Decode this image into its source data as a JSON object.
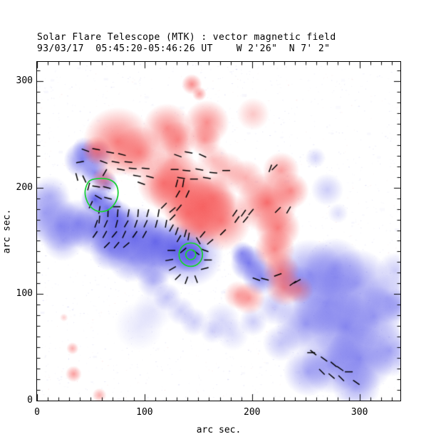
{
  "header": {
    "title": "Solar Flare Telescope (MTK) : vector magnetic field",
    "subtitle": "93/03/17  05:45:20-05:46:26 UT    W 2'26\"  N 7' 2\""
  },
  "chart_data": {
    "type": "heatmap",
    "title": "Solar Flare Telescope (MTK) : vector magnetic field",
    "subtitle": "93/03/17  05:45:20-05:46:26 UT    W 2'26\"  N 7' 2\"",
    "xlabel": "arc sec.",
    "ylabel": "arc sec.",
    "xlim": [
      0,
      338
    ],
    "ylim": [
      0,
      318
    ],
    "x_ticks": [
      0,
      100,
      200,
      300
    ],
    "y_ticks": [
      0,
      100,
      200,
      300
    ],
    "minor_tick_step": 10,
    "grid": false,
    "legend": "none",
    "colors": {
      "positive_polarity": "#f65c5c",
      "negative_polarity": "#5858e8",
      "contour": "#1fd03a",
      "vector": "#000000",
      "frame": "#000000",
      "background": "#ffffff"
    },
    "regions_positive": [
      [
        144,
        297,
        5,
        0.7
      ],
      [
        151,
        288,
        3.5,
        0.6
      ],
      [
        75,
        243,
        17,
        0.8
      ],
      [
        95,
        233,
        13,
        0.75
      ],
      [
        55,
        235,
        7,
        0.7
      ],
      [
        121,
        256,
        12,
        0.7
      ],
      [
        131,
        245,
        9,
        0.7
      ],
      [
        158,
        261,
        11,
        0.7
      ],
      [
        156,
        245,
        8,
        0.6
      ],
      [
        164,
        226,
        8,
        0.4
      ],
      [
        127,
        226,
        10,
        0.5
      ],
      [
        118,
        204,
        13,
        0.8
      ],
      [
        134,
        199,
        16,
        0.95
      ],
      [
        154,
        182,
        16,
        0.85
      ],
      [
        171,
        169,
        15,
        0.8
      ],
      [
        141,
        176,
        12,
        0.8
      ],
      [
        152,
        164,
        10,
        0.6
      ],
      [
        163,
        190,
        12,
        0.75
      ],
      [
        62,
        208,
        6,
        0.6
      ],
      [
        177,
        216,
        9,
        0.45
      ],
      [
        194,
        209,
        9,
        0.5
      ],
      [
        201,
        269,
        8,
        0.35
      ],
      [
        214,
        186,
        15,
        0.9
      ],
      [
        227,
        216,
        9,
        0.6
      ],
      [
        236,
        197,
        9,
        0.7
      ],
      [
        224,
        162,
        11,
        0.8
      ],
      [
        221,
        142,
        10,
        0.75
      ],
      [
        227,
        122,
        9,
        0.75
      ],
      [
        230,
        106,
        9,
        0.7
      ],
      [
        244,
        104,
        7,
        0.5
      ],
      [
        197,
        96,
        8,
        0.6
      ],
      [
        187,
        99,
        7,
        0.5
      ],
      [
        33,
        49,
        3,
        0.5
      ],
      [
        34,
        25,
        4,
        0.6
      ],
      [
        58,
        5,
        3.5,
        0.5
      ],
      [
        25,
        78,
        2,
        0.3
      ]
    ],
    "regions_negative": [
      [
        42,
        226,
        9,
        0.75
      ],
      [
        44,
        236,
        6,
        0.5
      ],
      [
        54,
        214,
        7,
        0.7
      ],
      [
        57,
        231,
        7,
        0.6
      ],
      [
        64,
        204,
        6,
        0.7
      ],
      [
        54,
        189,
        7,
        0.95
      ],
      [
        65,
        181,
        8,
        0.8
      ],
      [
        74,
        171,
        9,
        0.8
      ],
      [
        7,
        176,
        15,
        0.5
      ],
      [
        22,
        164,
        13,
        0.55
      ],
      [
        12,
        192,
        10,
        0.35
      ],
      [
        24,
        150,
        10,
        0.4
      ],
      [
        38,
        166,
        12,
        0.6
      ],
      [
        55,
        161,
        13,
        0.7
      ],
      [
        73,
        156,
        13,
        0.75
      ],
      [
        91,
        154,
        15,
        0.8
      ],
      [
        110,
        149,
        13,
        0.85
      ],
      [
        128,
        142,
        13,
        0.9
      ],
      [
        143,
        137,
        9,
        1.0
      ],
      [
        143,
        137,
        16,
        0.6
      ],
      [
        88,
        134,
        12,
        0.6
      ],
      [
        108,
        128,
        11,
        0.55
      ],
      [
        68,
        141,
        10,
        0.6
      ],
      [
        108,
        112,
        8,
        0.4
      ],
      [
        121,
        97,
        7,
        0.35
      ],
      [
        134,
        84,
        7,
        0.3
      ],
      [
        146,
        74,
        7,
        0.3
      ],
      [
        163,
        65,
        6,
        0.25
      ],
      [
        172,
        75,
        9,
        0.25
      ],
      [
        182,
        62,
        8,
        0.2
      ],
      [
        95,
        70,
        12,
        0.15
      ],
      [
        108,
        85,
        10,
        0.15
      ],
      [
        197,
        129,
        9,
        0.8
      ],
      [
        208,
        116,
        9,
        0.75
      ],
      [
        191,
        138,
        6,
        0.6
      ],
      [
        230,
        115,
        10,
        0.4
      ],
      [
        270,
        198,
        8,
        0.3
      ],
      [
        259,
        228,
        5,
        0.25
      ],
      [
        280,
        176,
        5,
        0.2
      ],
      [
        254,
        119,
        17,
        0.6
      ],
      [
        277,
        124,
        15,
        0.55
      ],
      [
        297,
        110,
        17,
        0.6
      ],
      [
        270,
        92,
        17,
        0.65
      ],
      [
        250,
        72,
        15,
        0.6
      ],
      [
        287,
        69,
        17,
        0.7
      ],
      [
        313,
        79,
        15,
        0.6
      ],
      [
        326,
        96,
        12,
        0.45
      ],
      [
        300,
        39,
        17,
        0.7
      ],
      [
        274,
        35,
        15,
        0.6
      ],
      [
        252,
        27,
        12,
        0.5
      ],
      [
        297,
        14,
        12,
        0.5
      ],
      [
        328,
        47,
        13,
        0.55
      ],
      [
        221,
        88,
        9,
        0.35
      ],
      [
        201,
        74,
        7,
        0.3
      ],
      [
        227,
        54,
        9,
        0.35
      ],
      [
        244,
        110,
        9,
        0.45
      ],
      [
        333,
        122,
        9,
        0.3
      ],
      [
        336,
        89,
        8,
        0.35
      ]
    ],
    "vectors": [
      [
        68,
        233,
        -10
      ],
      [
        79,
        231,
        -15
      ],
      [
        62,
        224,
        -20
      ],
      [
        73,
        224,
        -10
      ],
      [
        85,
        224,
        -5
      ],
      [
        63,
        214,
        60
      ],
      [
        78,
        217,
        -10
      ],
      [
        89,
        218,
        -5
      ],
      [
        101,
        218,
        -5
      ],
      [
        93,
        211,
        -10
      ],
      [
        105,
        210,
        -15
      ],
      [
        97,
        204,
        -20
      ],
      [
        45,
        235,
        -20
      ],
      [
        55,
        236,
        -10
      ],
      [
        40,
        224,
        10
      ],
      [
        37,
        210,
        -75
      ],
      [
        44,
        208,
        -65
      ],
      [
        48,
        201,
        75
      ],
      [
        55,
        201,
        -10
      ],
      [
        65,
        200,
        -15
      ],
      [
        57,
        191,
        -30
      ],
      [
        66,
        190,
        -15
      ],
      [
        50,
        184,
        65
      ],
      [
        58,
        179,
        80
      ],
      [
        74,
        182,
        0
      ],
      [
        58,
        170,
        85
      ],
      [
        66,
        176,
        88
      ],
      [
        75,
        176,
        85
      ],
      [
        85,
        176,
        80
      ],
      [
        94,
        176,
        85
      ],
      [
        103,
        176,
        75
      ],
      [
        113,
        176,
        80
      ],
      [
        55,
        166,
        70
      ],
      [
        64,
        166,
        65
      ],
      [
        74,
        166,
        75
      ],
      [
        83,
        166,
        60
      ],
      [
        92,
        166,
        70
      ],
      [
        101,
        166,
        65
      ],
      [
        111,
        166,
        75
      ],
      [
        120,
        166,
        80
      ],
      [
        54,
        156,
        55
      ],
      [
        63,
        156,
        60
      ],
      [
        72,
        156,
        50
      ],
      [
        81,
        156,
        65
      ],
      [
        91,
        156,
        55
      ],
      [
        100,
        156,
        60
      ],
      [
        65,
        146,
        45
      ],
      [
        74,
        146,
        50
      ],
      [
        83,
        146,
        40
      ],
      [
        125,
        162,
        60
      ],
      [
        131,
        230,
        -20
      ],
      [
        141,
        233,
        -10
      ],
      [
        154,
        230,
        -25
      ],
      [
        128,
        217,
        0
      ],
      [
        139,
        216,
        -5
      ],
      [
        151,
        217,
        -10
      ],
      [
        164,
        214,
        -5
      ],
      [
        176,
        216,
        0
      ],
      [
        134,
        209,
        -10
      ],
      [
        146,
        208,
        0
      ],
      [
        158,
        209,
        -10
      ],
      [
        130,
        204,
        75
      ],
      [
        136,
        204,
        80
      ],
      [
        131,
        194,
        60
      ],
      [
        140,
        194,
        65
      ],
      [
        118,
        183,
        45
      ],
      [
        126,
        179,
        40
      ],
      [
        132,
        181,
        50
      ],
      [
        126,
        172,
        45
      ],
      [
        138,
        157,
        75
      ],
      [
        173,
        158,
        45
      ],
      [
        184,
        176,
        55
      ],
      [
        192,
        176,
        55
      ],
      [
        199,
        177,
        50
      ],
      [
        186,
        170,
        55
      ],
      [
        194,
        170,
        50
      ],
      [
        217,
        218,
        70
      ],
      [
        224,
        179,
        45
      ],
      [
        221,
        219,
        45
      ],
      [
        234,
        179,
        60
      ],
      [
        125,
        141,
        0
      ],
      [
        123,
        132,
        10
      ],
      [
        126,
        124,
        30
      ],
      [
        132,
        152,
        60
      ],
      [
        141,
        154,
        80
      ],
      [
        150,
        150,
        -60
      ],
      [
        156,
        141,
        -20
      ],
      [
        159,
        132,
        0
      ],
      [
        156,
        124,
        15
      ],
      [
        131,
        116,
        45
      ],
      [
        139,
        113,
        70
      ],
      [
        148,
        114,
        -70
      ],
      [
        136,
        141,
        40
      ],
      [
        148,
        139,
        -35
      ],
      [
        154,
        156,
        50
      ],
      [
        161,
        149,
        40
      ],
      [
        130,
        159,
        70
      ],
      [
        257,
        45,
        -40
      ],
      [
        267,
        39,
        -35
      ],
      [
        276,
        34,
        -40
      ],
      [
        282,
        30,
        -35
      ],
      [
        265,
        27,
        -45
      ],
      [
        274,
        23,
        -40
      ],
      [
        283,
        21,
        -45
      ],
      [
        255,
        45,
        0
      ],
      [
        290,
        27,
        0
      ],
      [
        297,
        17,
        -35
      ],
      [
        204,
        114,
        -20
      ],
      [
        212,
        114,
        -15
      ],
      [
        224,
        118,
        20
      ],
      [
        238,
        110,
        35
      ],
      [
        242,
        112,
        30
      ]
    ],
    "contours": [
      {
        "id": "flare-contour-1",
        "type": "polygon",
        "points": [
          [
            50,
            208
          ],
          [
            65,
            209
          ],
          [
            74,
            204
          ],
          [
            76,
            194
          ],
          [
            73,
            185
          ],
          [
            66,
            178
          ],
          [
            56,
            177
          ],
          [
            48,
            183
          ],
          [
            44,
            194
          ],
          [
            46,
            203
          ]
        ]
      },
      {
        "id": "flare-contour-2",
        "type": "circles",
        "cx": 143,
        "cy": 137,
        "radii": [
          10.9,
          4.6
        ]
      }
    ],
    "noise": {
      "seed": 42,
      "negative_count": 1600,
      "positive_count": 320,
      "smudge_count": 70
    }
  }
}
